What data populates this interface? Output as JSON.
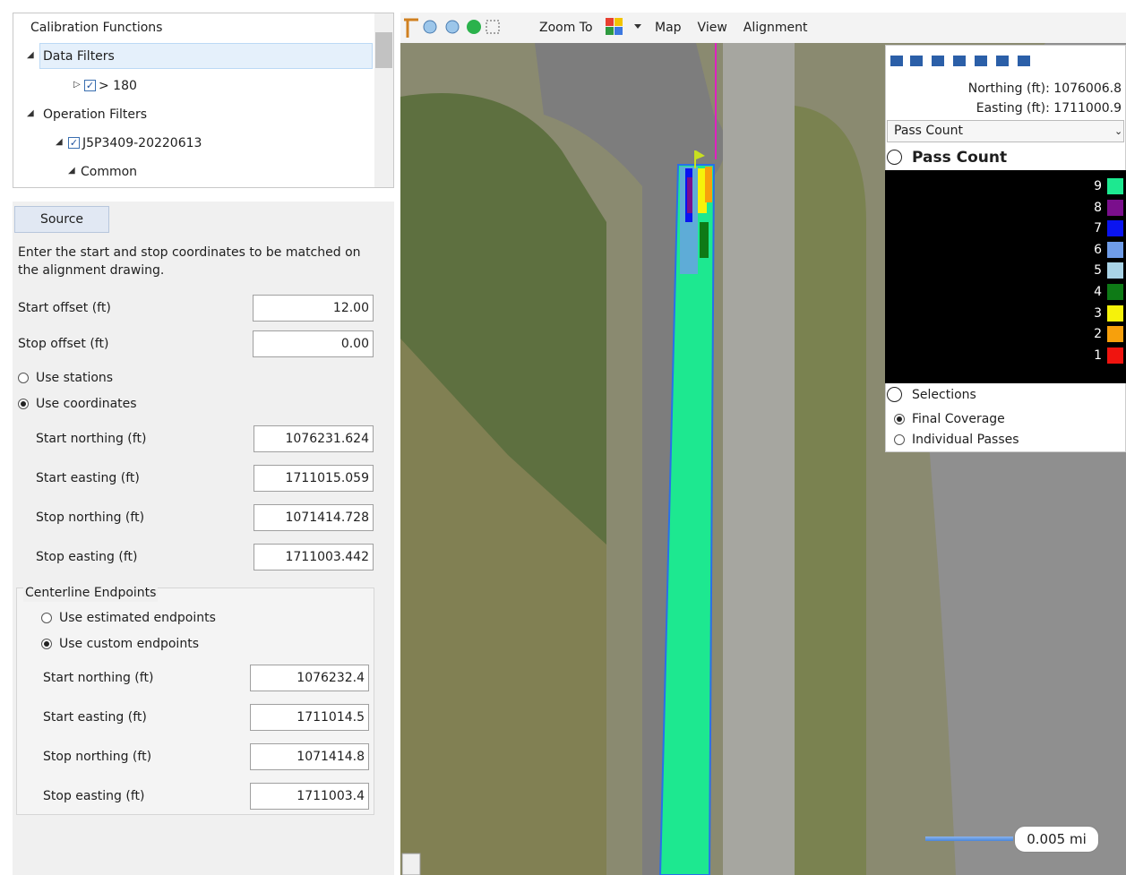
{
  "tree": {
    "items": [
      {
        "label": "Calibration Functions"
      },
      {
        "label": "Data Filters"
      },
      {
        "label": "> 180",
        "checked": true
      },
      {
        "label": "Operation Filters"
      },
      {
        "label": "J5P3409-20220613",
        "checked": true
      },
      {
        "label": "Common"
      }
    ]
  },
  "form": {
    "source_button": "Source",
    "instructions": "Enter the start and stop coordinates to be matched on the alignment drawing.",
    "offsets": [
      {
        "label": "Start offset (ft)",
        "value": "12.00"
      },
      {
        "label": "Stop offset (ft)",
        "value": "0.00"
      }
    ],
    "mode": [
      {
        "label": "Use stations",
        "selected": false
      },
      {
        "label": "Use coordinates",
        "selected": true
      }
    ],
    "coordinates": [
      {
        "label": "Start northing (ft)",
        "value": "1076231.624"
      },
      {
        "label": "Start easting (ft)",
        "value": "1711015.059"
      },
      {
        "label": "Stop northing (ft)",
        "value": "1071414.728"
      },
      {
        "label": "Stop easting (ft)",
        "value": "1711003.442"
      }
    ],
    "centerline": {
      "title": "Centerline Endpoints",
      "mode": [
        {
          "label": "Use estimated endpoints",
          "selected": false
        },
        {
          "label": "Use custom endpoints",
          "selected": true
        }
      ],
      "fields": [
        {
          "label": "Start northing (ft)",
          "value": "1076232.4"
        },
        {
          "label": "Start easting (ft)",
          "value": "1711014.5"
        },
        {
          "label": "Stop northing (ft)",
          "value": "1071414.8"
        },
        {
          "label": "Stop easting (ft)",
          "value": "1711003.4"
        }
      ]
    }
  },
  "toolbar": {
    "zoom_to": "Zoom To",
    "menus": [
      "Map",
      "View",
      "Alignment"
    ]
  },
  "legend": {
    "northing": "Northing (ft): 1076006.8",
    "easting": "Easting (ft): 1711000.9",
    "dropdown": "Pass Count",
    "title": "Pass Count",
    "items": [
      {
        "label": "9",
        "color": "#1de890"
      },
      {
        "label": "8",
        "color": "#7a0f8c"
      },
      {
        "label": "7",
        "color": "#0a14f0"
      },
      {
        "label": "6",
        "color": "#6f9ce8"
      },
      {
        "label": "5",
        "color": "#a9d3e6"
      },
      {
        "label": "4",
        "color": "#0e7a16"
      },
      {
        "label": "3",
        "color": "#f6f20a"
      },
      {
        "label": "2",
        "color": "#f7a00c"
      },
      {
        "label": "1",
        "color": "#f0140f"
      }
    ],
    "selections_title": "Selections",
    "selections": [
      {
        "label": "Final Coverage",
        "selected": true
      },
      {
        "label": "Individual Passes",
        "selected": false
      }
    ]
  },
  "scale": "0.005 mi"
}
